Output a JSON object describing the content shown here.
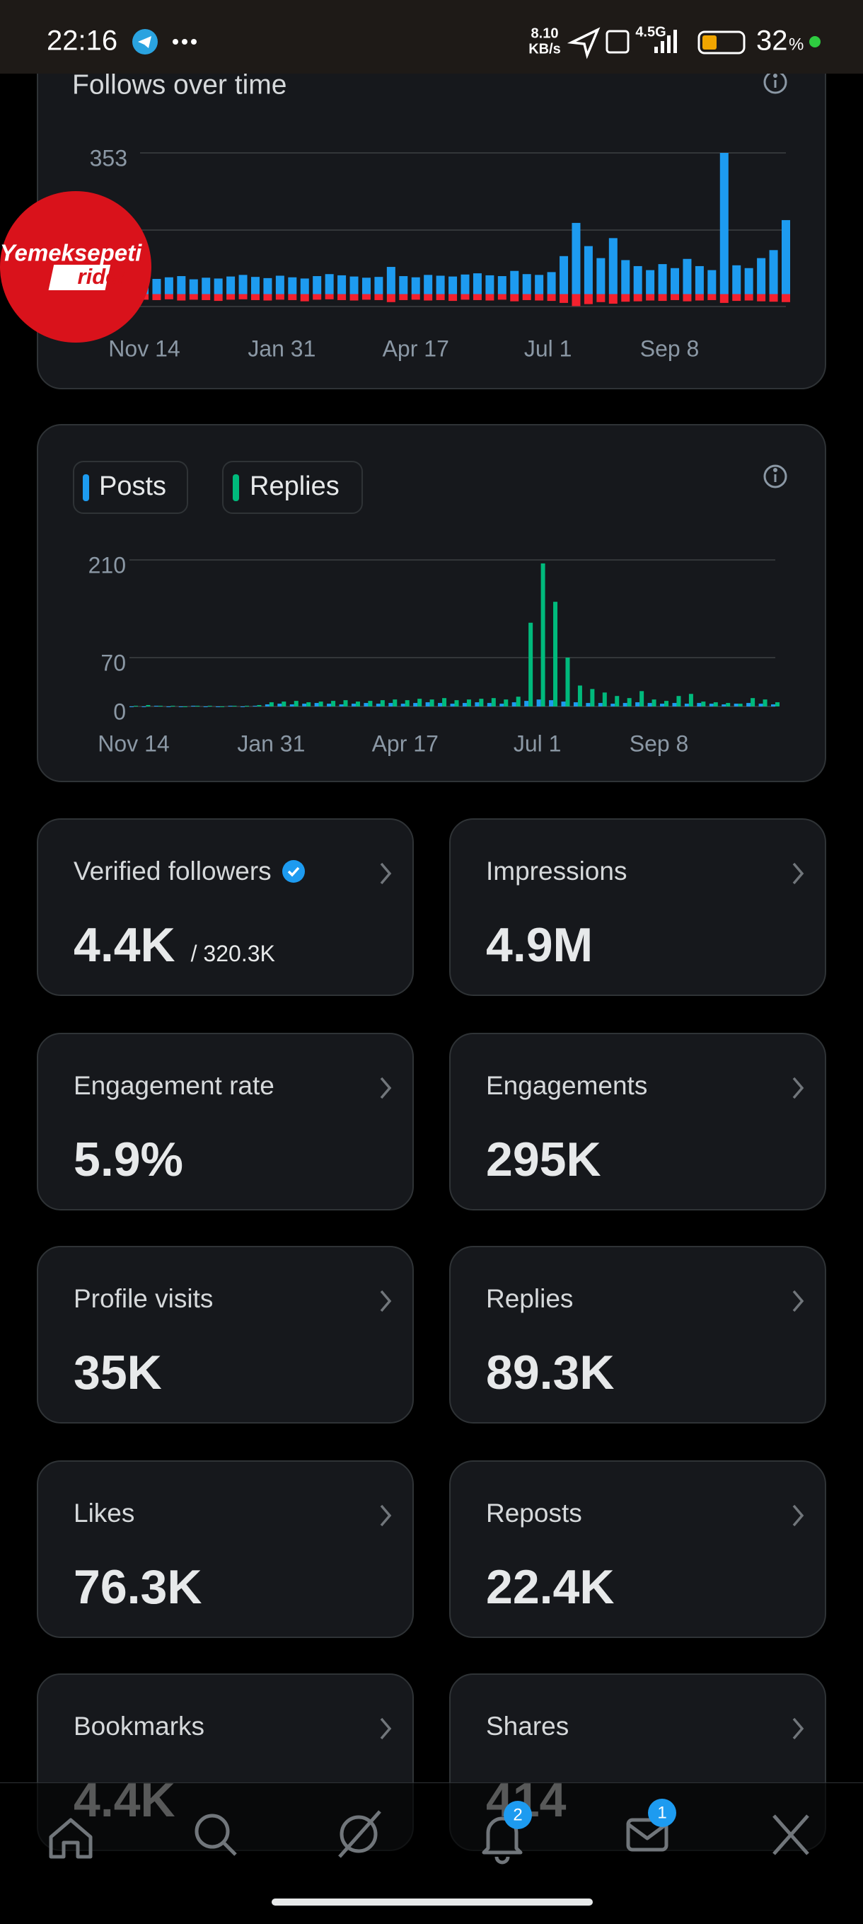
{
  "status_bar": {
    "time": "22:16",
    "net_speed": "8.10",
    "net_unit": "KB/s",
    "network": "4.5G",
    "battery": "32",
    "battery_unit": "%"
  },
  "chart_data": [
    {
      "type": "bar",
      "title": "Follows over time",
      "x": [
        0,
        7,
        14,
        21,
        28,
        35,
        42,
        49,
        56,
        63,
        70,
        77,
        84,
        91,
        98,
        105,
        112,
        119,
        126,
        133,
        140,
        147,
        154,
        161,
        168,
        175,
        182,
        189,
        196,
        203,
        210,
        217,
        224,
        231,
        238,
        245,
        252,
        259,
        266,
        273,
        280,
        287,
        294,
        301,
        308,
        315,
        322,
        329,
        336,
        343,
        350,
        357,
        364
      ],
      "series": [
        {
          "color": "#1d9bf0",
          "values": [
            40,
            38,
            42,
            45,
            37,
            41,
            39,
            44,
            48,
            43,
            40,
            46,
            42,
            39,
            45,
            50,
            47,
            44,
            41,
            43,
            68,
            45,
            42,
            48,
            46,
            44,
            49,
            52,
            47,
            45,
            58,
            50,
            48,
            55,
            95,
            178,
            120,
            90,
            140,
            85,
            70,
            60,
            75,
            65,
            88,
            70,
            60,
            353,
            72,
            65,
            90,
            110,
            185
          ]
        },
        {
          "color": "#f4212e",
          "values": [
            -14,
            -15,
            -13,
            -16,
            -14,
            -15,
            -17,
            -14,
            -13,
            -15,
            -16,
            -14,
            -15,
            -18,
            -14,
            -13,
            -15,
            -16,
            -14,
            -15,
            -20,
            -15,
            -14,
            -16,
            -15,
            -17,
            -14,
            -15,
            -16,
            -14,
            -18,
            -15,
            -16,
            -17,
            -22,
            -30,
            -25,
            -20,
            -24,
            -19,
            -18,
            -16,
            -17,
            -15,
            -18,
            -16,
            -15,
            -22,
            -17,
            -16,
            -18,
            -19,
            -20
          ]
        }
      ],
      "xlim": [
        0,
        364
      ],
      "xticks": [
        {
          "value": 0,
          "label": "Nov 14"
        },
        {
          "value": 78,
          "label": "Jan 31"
        },
        {
          "value": 154,
          "label": "Apr 17"
        },
        {
          "value": 229,
          "label": "Jul 1"
        },
        {
          "value": 298,
          "label": "Sep 8"
        }
      ],
      "ylim": [
        -31,
        353
      ],
      "yticks": [
        353
      ],
      "grid": true
    },
    {
      "type": "bar",
      "x": [
        0,
        7,
        14,
        21,
        28,
        35,
        42,
        49,
        56,
        63,
        70,
        77,
        84,
        91,
        98,
        105,
        112,
        119,
        126,
        133,
        140,
        147,
        154,
        161,
        168,
        175,
        182,
        189,
        196,
        203,
        210,
        217,
        224,
        231,
        238,
        245,
        252,
        259,
        266,
        273,
        280,
        287,
        294,
        301,
        308,
        315,
        322,
        329,
        336,
        343,
        350,
        357,
        364
      ],
      "series": [
        {
          "name": "Posts",
          "color": "#1d9bf0",
          "values": [
            0,
            0,
            1,
            0,
            0,
            1,
            0,
            0,
            1,
            0,
            1,
            3,
            4,
            3,
            4,
            5,
            4,
            3,
            4,
            5,
            4,
            5,
            4,
            5,
            6,
            5,
            4,
            5,
            6,
            5,
            4,
            6,
            8,
            10,
            9,
            7,
            6,
            5,
            5,
            4,
            5,
            6,
            5,
            4,
            5,
            4,
            5,
            4,
            3,
            4,
            5,
            4,
            3
          ]
        },
        {
          "name": "Replies",
          "color": "#00ba7c",
          "values": [
            1,
            2,
            1,
            1,
            0,
            1,
            1,
            0,
            1,
            1,
            2,
            6,
            7,
            8,
            6,
            7,
            8,
            9,
            7,
            8,
            9,
            10,
            9,
            11,
            10,
            12,
            9,
            10,
            11,
            12,
            10,
            14,
            120,
            205,
            150,
            70,
            30,
            25,
            20,
            15,
            12,
            22,
            10,
            8,
            15,
            18,
            7,
            6,
            5,
            4,
            12,
            10,
            6
          ]
        }
      ],
      "xlim": [
        0,
        364
      ],
      "xticks": [
        {
          "value": 0,
          "label": "Nov 14"
        },
        {
          "value": 78,
          "label": "Jan 31"
        },
        {
          "value": 154,
          "label": "Apr 17"
        },
        {
          "value": 229,
          "label": "Jul 1"
        },
        {
          "value": 298,
          "label": "Sep 8"
        }
      ],
      "ylim": [
        0,
        210
      ],
      "yticks": [
        0,
        70,
        210
      ],
      "grid": true
    }
  ],
  "overlay_badge": {
    "line1": "Yemeksepeti",
    "line2": "rider"
  },
  "metrics": [
    {
      "label": "Verified followers",
      "value": "4.4K",
      "total": "/ 320.3K"
    },
    {
      "label": "Impressions",
      "value": "4.9M"
    },
    {
      "label": "Engagement rate",
      "value": "5.9%"
    },
    {
      "label": "Engagements",
      "value": "295K"
    },
    {
      "label": "Profile visits",
      "value": "35K"
    },
    {
      "label": "Replies",
      "value": "89.3K"
    },
    {
      "label": "Likes",
      "value": "76.3K"
    },
    {
      "label": "Reposts",
      "value": "22.4K"
    },
    {
      "label": "Bookmarks",
      "value": "4.4K"
    },
    {
      "label": "Shares",
      "value": "414"
    }
  ],
  "nav": {
    "notifications_badge": "2",
    "messages_badge": "1"
  }
}
